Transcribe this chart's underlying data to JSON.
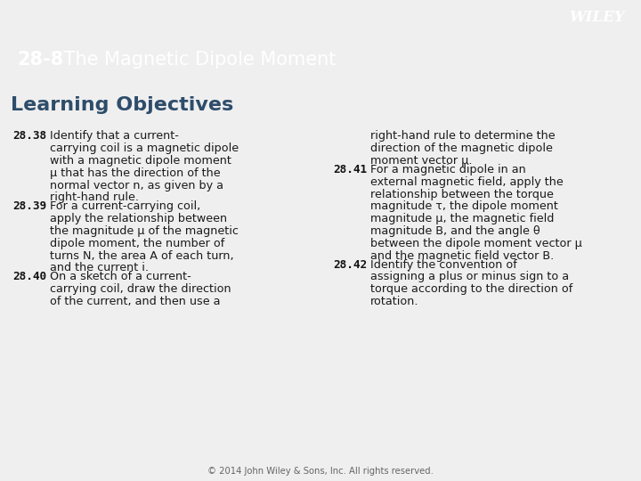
{
  "header_bg_color": "#3d5a6e",
  "header_text_color": "#ffffff",
  "wiley_text": "WILEY",
  "title_bold": "28-8",
  "title_normal": " The Magnetic Dipole Moment",
  "green_bar_color": "#7aab3a",
  "body_bg_color": "#efefef",
  "lo_title": "Learning Objectives",
  "lo_title_color": "#2e4d6b",
  "text_color": "#1a1a1a",
  "footer": "© 2014 John Wiley & Sons, Inc. All rights reserved.",
  "left_entries": [
    {
      "num": "28.38",
      "text": "Identify that a current-\ncarrying coil is a magnetic dipole\nwith a magnetic dipole moment\nμ that has the direction of the\nnormal vector n, as given by a\nright-hand rule."
    },
    {
      "num": "28.39",
      "text": "For a current-carrying coil,\napply the relationship between\nthe magnitude μ of the magnetic\ndipole moment, the number of\nturns N, the area A of each turn,\nand the current i."
    },
    {
      "num": "28.40",
      "text": "On a sketch of a current-\ncarrying coil, draw the direction\nof the current, and then use a"
    }
  ],
  "right_entries": [
    {
      "num": "",
      "text": "right-hand rule to determine the\ndirection of the magnetic dipole\nmoment vector μ."
    },
    {
      "num": "28.41",
      "text": "For a magnetic dipole in an\nexternal magnetic field, apply the\nrelationship between the torque\nmagnitude τ, the dipole moment\nmagnitude μ, the magnetic field\nmagnitude B, and the angle θ\nbetween the dipole moment vector μ\nand the magnetic field vector B."
    },
    {
      "num": "28.42",
      "text": "Identify the convention of\nassigning a plus or minus sign to a\ntorque according to the direction of\nrotation."
    }
  ]
}
